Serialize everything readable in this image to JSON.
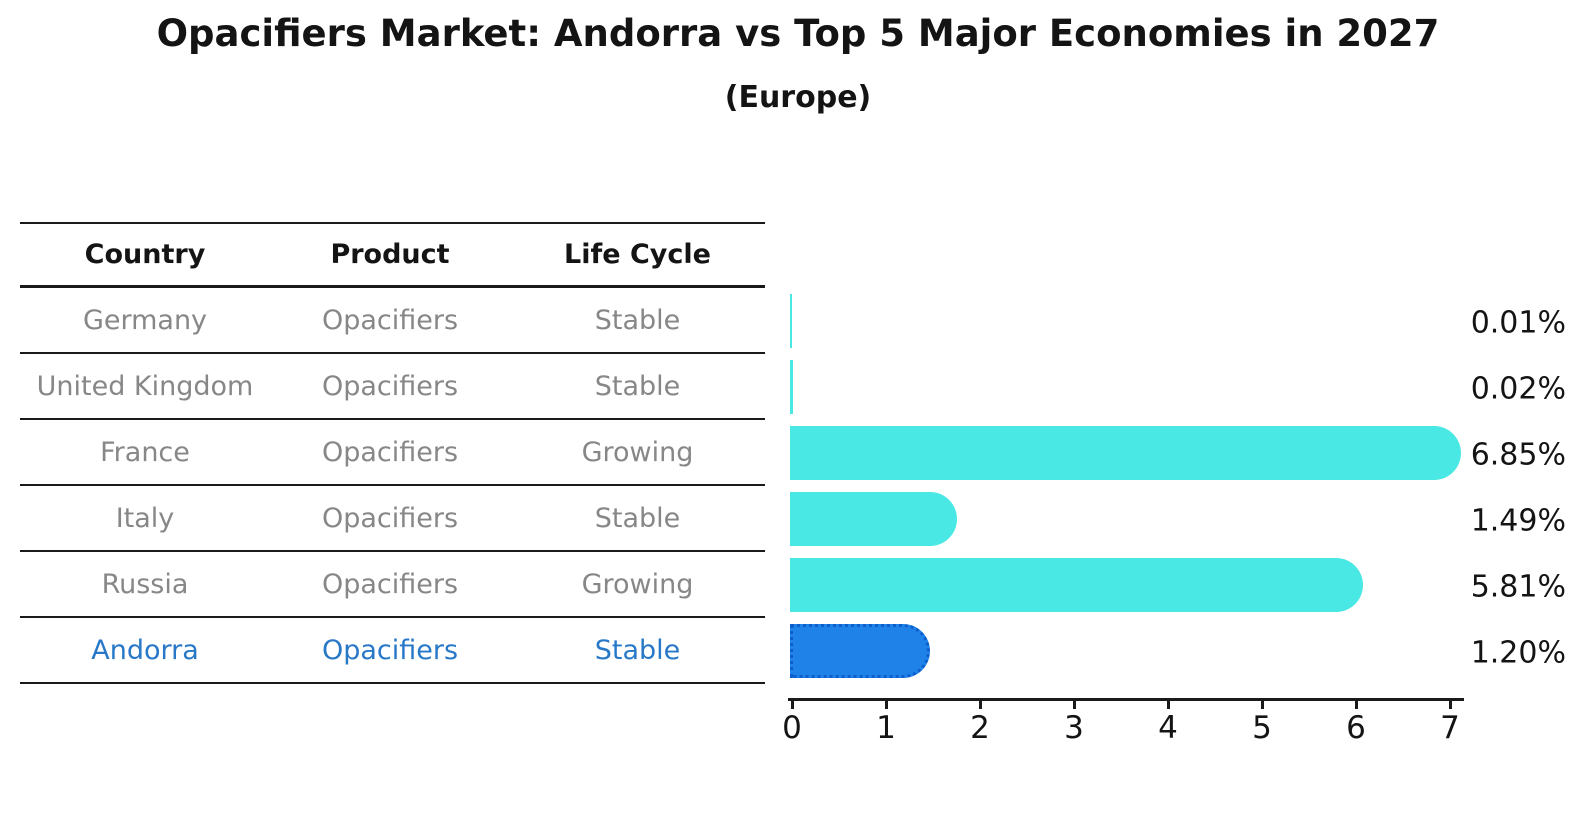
{
  "title": "Opacifiers Market: Andorra vs Top 5 Major Economies in 2027",
  "subtitle": "(Europe)",
  "table": {
    "headers": [
      "Country",
      "Product",
      "Life Cycle"
    ],
    "rows": [
      {
        "country": "Germany",
        "product": "Opacifiers",
        "life_cycle": "Stable",
        "highlight": false
      },
      {
        "country": "United Kingdom",
        "product": "Opacifiers",
        "life_cycle": "Stable",
        "highlight": false
      },
      {
        "country": "France",
        "product": "Opacifiers",
        "life_cycle": "Growing",
        "highlight": false
      },
      {
        "country": "Italy",
        "product": "Opacifiers",
        "life_cycle": "Stable",
        "highlight": false
      },
      {
        "country": "Russia",
        "product": "Opacifiers",
        "life_cycle": "Growing",
        "highlight": false
      },
      {
        "country": "Andorra",
        "product": "Opacifiers",
        "life_cycle": "Stable",
        "highlight": true
      }
    ]
  },
  "chart_data": {
    "type": "bar",
    "orientation": "horizontal",
    "title": "Opacifiers Market: Andorra vs Top 5 Major Economies in 2027",
    "subtitle": "(Europe)",
    "categories": [
      "Germany",
      "United Kingdom",
      "France",
      "Italy",
      "Russia",
      "Andorra"
    ],
    "values": [
      0.01,
      0.02,
      6.85,
      1.49,
      5.81,
      1.2
    ],
    "value_labels": [
      "0.01%",
      "0.02%",
      "6.85%",
      "1.49%",
      "5.81%",
      "1.20%"
    ],
    "xlim": [
      0,
      7
    ],
    "x_ticks": [
      0,
      1,
      2,
      3,
      4,
      5,
      6,
      7
    ],
    "grid": false,
    "legend": "none",
    "highlight_index": 5
  },
  "colors": {
    "bar": "#49E8E4",
    "highlight_bar": "#1E82E8",
    "highlight_border": "#0E5ECC",
    "highlight_text": "#2878C8",
    "table_text": "#878787",
    "heading_text": "#141414",
    "axis": "#1a1a1a",
    "background": "#ffffff"
  }
}
